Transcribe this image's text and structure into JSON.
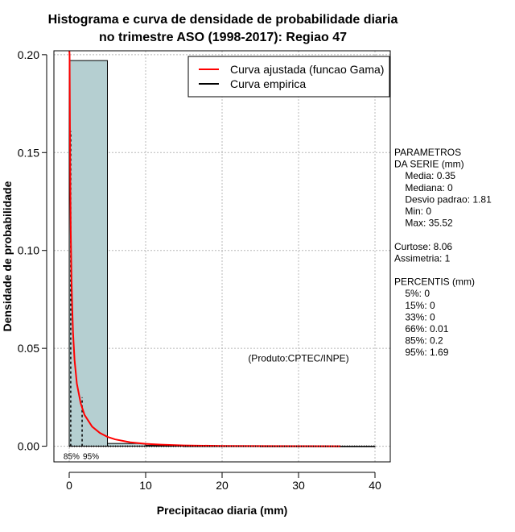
{
  "chart_data": {
    "type": "histogram",
    "title": "Histograma e curva de densidade de probabilidade diaria",
    "subtitle": "no trimestre ASO (1998-2017): Regiao 47",
    "xlabel": "Precipitacao diaria (mm)",
    "ylabel": "Densidade de probabilidade",
    "xlim": [
      -2,
      42
    ],
    "ylim": [
      -0.008,
      0.202
    ],
    "x_ticks": [
      0,
      10,
      20,
      30,
      40
    ],
    "x_tick_labels": [
      "0",
      "10",
      "20",
      "30",
      "40"
    ],
    "y_ticks": [
      0.0,
      0.05,
      0.1,
      0.15,
      0.2
    ],
    "y_tick_labels": [
      "0.00",
      "0.05",
      "0.10",
      "0.15",
      "0.20"
    ],
    "grid": true,
    "bins": [
      {
        "start": 0,
        "end": 5,
        "density": 0.197
      },
      {
        "start": 5,
        "end": 10,
        "density": 0.0014
      },
      {
        "start": 10,
        "end": 15,
        "density": 0.0004
      },
      {
        "start": 15,
        "end": 20,
        "density": 0.0001
      },
      {
        "start": 20,
        "end": 25,
        "density": 0.0001
      },
      {
        "start": 25,
        "end": 30,
        "density": 0.0
      },
      {
        "start": 30,
        "end": 35,
        "density": 0.0
      },
      {
        "start": 35,
        "end": 40,
        "density": 0.0
      }
    ],
    "series": [
      {
        "name": "Curva ajustada (funcao Gama)",
        "color": "#ff0000",
        "x": [
          0.02,
          0.05,
          0.1,
          0.15,
          0.2,
          0.3,
          0.4,
          0.5,
          0.7,
          1.0,
          1.5,
          2,
          3,
          4,
          5,
          6,
          8,
          10,
          12,
          15,
          20,
          25,
          30,
          35.52
        ],
        "y": [
          0.202,
          0.2,
          0.16,
          0.13,
          0.11,
          0.085,
          0.07,
          0.058,
          0.044,
          0.032,
          0.022,
          0.016,
          0.01,
          0.0068,
          0.0048,
          0.0035,
          0.002,
          0.0012,
          0.0008,
          0.0004,
          0.00015,
          6e-05,
          2e-05,
          0.0
        ]
      },
      {
        "name": "Curva empirica",
        "color": "#000000",
        "x": [
          0.01,
          0.05,
          0.1,
          0.2,
          0.35,
          0.5,
          1,
          2,
          5,
          10,
          20,
          30,
          40
        ],
        "y": [
          0.0,
          0.0,
          0.0,
          0.0,
          0.0,
          0.0,
          0.0,
          0.0,
          0.0,
          0.0,
          0.0,
          0.0,
          0.0
        ]
      }
    ],
    "percentile_markers": [
      {
        "x": 0.2,
        "y_top": 0.161,
        "label": "85%"
      },
      {
        "x": 1.69,
        "y_top": 0.025,
        "label": "95%"
      }
    ],
    "legend": {
      "position": "top-right",
      "entries": [
        {
          "label": "Curva ajustada (funcao Gama)",
          "color": "#ff0000"
        },
        {
          "label": "Curva empirica",
          "color": "#000000"
        }
      ]
    },
    "annotations": {
      "credit": "(Produto:CPTEC/INPE)",
      "credit_at": [
        30,
        0.045
      ]
    }
  },
  "side_panel": {
    "lines": [
      "PARAMETROS",
      "DA SERIE (mm)",
      "  Media: 0.35",
      "  Mediana: 0",
      "  Desvio padrao: 1.81",
      "  Min: 0",
      "  Max: 35.52",
      "",
      "Curtose: 8.06",
      "Assimetria: 1",
      "",
      "PERCENTIS (mm)",
      "  5%: 0",
      "  15%: 0",
      "  33%: 0",
      "  66%: 0.01",
      "  85%: 0.2",
      "  95%: 1.69"
    ]
  },
  "colors": {
    "bar_fill": "#b5cfd1",
    "grid": "#b8b8b8",
    "fit_curve": "#ff0000"
  }
}
